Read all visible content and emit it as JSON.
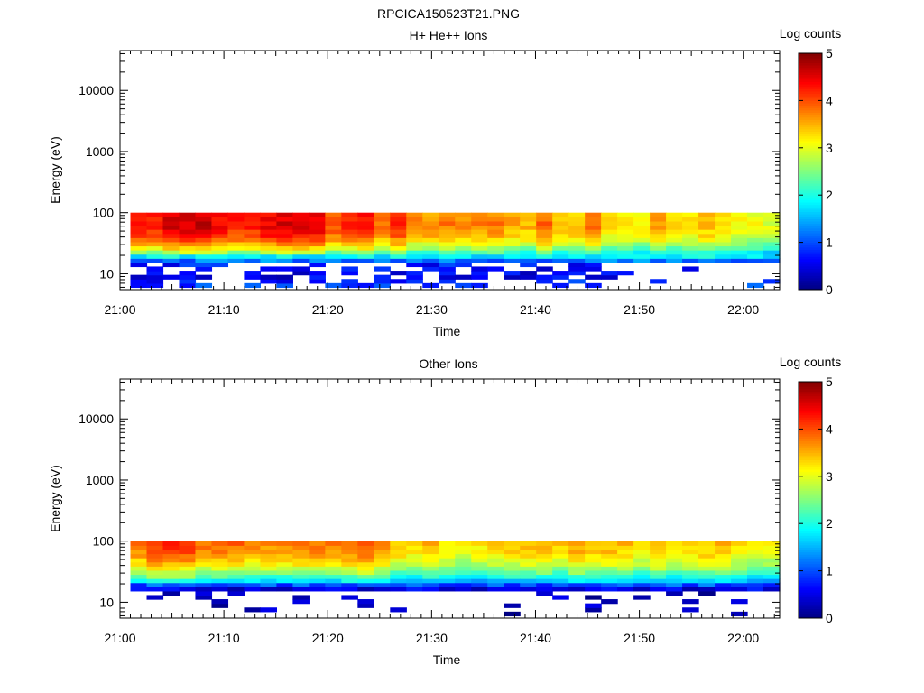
{
  "figure_title": "RPCICA150523T21.PNG",
  "chart_data": [
    {
      "type": "heatmap",
      "title": "H+ He++ Ions",
      "xlabel": "Time",
      "ylabel": "Energy (eV)",
      "x_ticks": [
        "21:00",
        "21:10",
        "21:20",
        "21:30",
        "21:40",
        "21:50",
        "22:00"
      ],
      "x_range_minutes": [
        0,
        63.5
      ],
      "y_scale": "log",
      "y_ticks": [
        10,
        100,
        1000,
        10000
      ],
      "y_tick_labels": [
        "10",
        "100",
        "1000",
        "10000"
      ],
      "y_range": [
        5.5,
        45000
      ],
      "colorbar": {
        "label": "Log counts",
        "range": [
          0,
          5
        ],
        "ticks": [
          "0",
          "1",
          "2",
          "3",
          "4",
          "5"
        ]
      },
      "data_extent": {
        "time_start_minutes": 1.0,
        "time_end_minutes": 63.5,
        "energy_min_eV": 6,
        "energy_max_eV": 100
      },
      "energy_profile": [
        {
          "energy_eV": 90,
          "log_counts": 4.2
        },
        {
          "energy_eV": 60,
          "log_counts": 4.3
        },
        {
          "energy_eV": 40,
          "log_counts": 4.0
        },
        {
          "energy_eV": 28,
          "log_counts": 3.3
        },
        {
          "energy_eV": 22,
          "log_counts": 2.5
        },
        {
          "energy_eV": 18,
          "log_counts": 1.5
        },
        {
          "energy_eV": 14,
          "log_counts": 0.7
        },
        {
          "energy_eV": 9,
          "log_counts": 0.5
        },
        {
          "energy_eV": 7,
          "log_counts": 0.9
        }
      ],
      "intensity_trend": [
        {
          "time_minutes": 2,
          "scale": 1.05
        },
        {
          "time_minutes": 20,
          "scale": 1.0
        },
        {
          "time_minutes": 30,
          "scale": 0.88
        },
        {
          "time_minutes": 40,
          "scale": 0.86
        },
        {
          "time_minutes": 50,
          "scale": 0.8
        },
        {
          "time_minutes": 63,
          "scale": 0.74
        }
      ]
    },
    {
      "type": "heatmap",
      "title": "Other Ions",
      "xlabel": "Time",
      "ylabel": "Energy (eV)",
      "x_ticks": [
        "21:00",
        "21:10",
        "21:20",
        "21:30",
        "21:40",
        "21:50",
        "22:00"
      ],
      "x_range_minutes": [
        0,
        63.5
      ],
      "y_scale": "log",
      "y_ticks": [
        10,
        100,
        1000,
        10000
      ],
      "y_tick_labels": [
        "10",
        "100",
        "1000",
        "10000"
      ],
      "y_range": [
        5.5,
        45000
      ],
      "colorbar": {
        "label": "Log counts",
        "range": [
          0,
          5
        ],
        "ticks": [
          "0",
          "1",
          "2",
          "3",
          "4",
          "5"
        ]
      },
      "data_extent": {
        "time_start_minutes": 1.0,
        "time_end_minutes": 63.5,
        "energy_min_eV": 6,
        "energy_max_eV": 100
      },
      "energy_profile": [
        {
          "energy_eV": 90,
          "log_counts": 3.9
        },
        {
          "energy_eV": 60,
          "log_counts": 3.7
        },
        {
          "energy_eV": 40,
          "log_counts": 3.2
        },
        {
          "energy_eV": 28,
          "log_counts": 2.5
        },
        {
          "energy_eV": 22,
          "log_counts": 1.8
        },
        {
          "energy_eV": 18,
          "log_counts": 0.6
        },
        {
          "energy_eV": 14,
          "log_counts": 0.3
        },
        {
          "energy_eV": 9,
          "log_counts": 0.3
        },
        {
          "energy_eV": 7,
          "log_counts": 0.3
        }
      ],
      "intensity_trend": [
        {
          "time_minutes": 2,
          "scale": 1.0
        },
        {
          "time_minutes": 20,
          "scale": 1.0
        },
        {
          "time_minutes": 30,
          "scale": 0.85
        },
        {
          "time_minutes": 40,
          "scale": 0.92
        },
        {
          "time_minutes": 50,
          "scale": 0.88
        },
        {
          "time_minutes": 63,
          "scale": 0.84
        }
      ]
    }
  ]
}
